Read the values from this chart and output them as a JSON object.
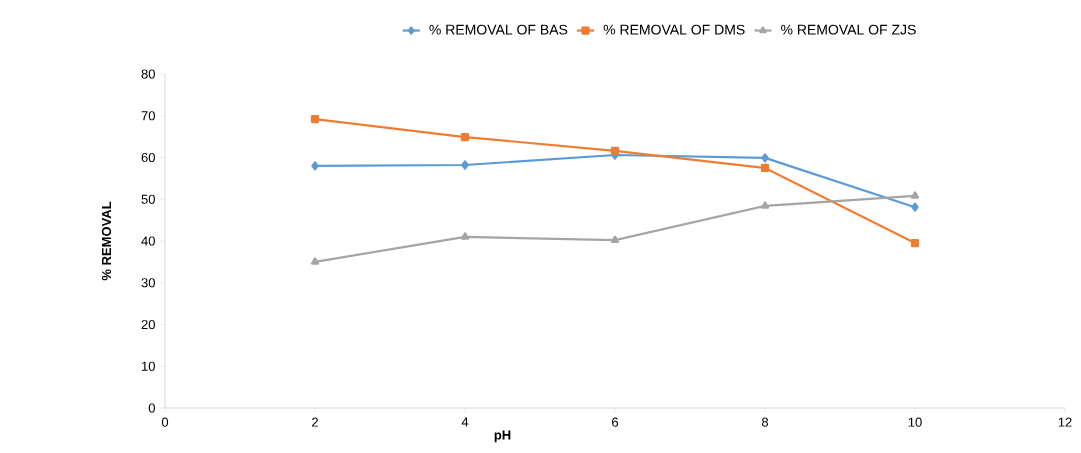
{
  "chart_data": {
    "type": "line",
    "xlabel": "pH",
    "ylabel": "% REMOVAL",
    "x": [
      2,
      4,
      6,
      8,
      10
    ],
    "series": [
      {
        "name": "% REMOVAL OF BAS",
        "color": "#5b9bd5",
        "marker": "diamond",
        "values": [
          58.0,
          58.2,
          60.6,
          59.9,
          48.1
        ]
      },
      {
        "name": "% REMOVAL OF DMS",
        "color": "#ed7d31",
        "marker": "square",
        "values": [
          69.2,
          64.9,
          61.6,
          57.5,
          39.5
        ]
      },
      {
        "name": "% REMOVAL OF ZJS",
        "color": "#a5a5a5",
        "marker": "triangle",
        "values": [
          35.0,
          41.0,
          40.2,
          48.4,
          50.8
        ]
      }
    ],
    "xlim": [
      0,
      12
    ],
    "xticks": [
      0,
      2,
      4,
      6,
      8,
      10,
      12
    ],
    "ylim": [
      0,
      80
    ],
    "yticks": [
      0,
      10,
      20,
      30,
      40,
      50,
      60,
      70,
      80
    ],
    "legend": "top",
    "grid": false,
    "line_style": "solid"
  }
}
